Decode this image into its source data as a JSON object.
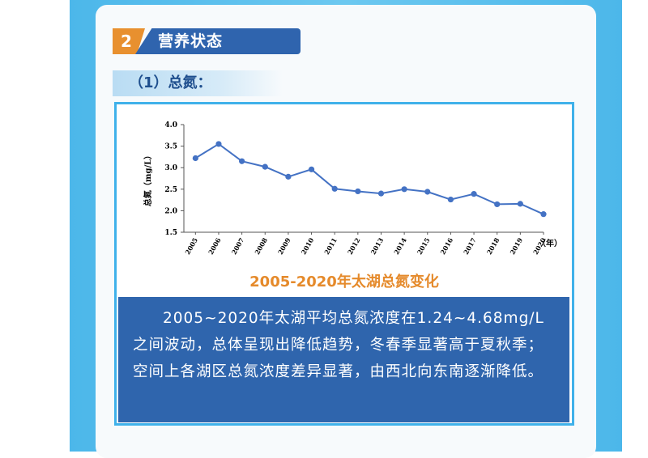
{
  "section": {
    "number": "2",
    "title": "营养状态"
  },
  "subsection": {
    "title": "（1）总氮："
  },
  "chart_data": {
    "type": "line",
    "title": "2005-2020年太湖总氮变化",
    "xlabel": "（年）",
    "ylabel": "总氮（mg/L）",
    "ylim": [
      1.5,
      4.0
    ],
    "yticks": [
      "1.5",
      "2.0",
      "2.5",
      "3.0",
      "3.5",
      "4.0"
    ],
    "x": [
      "2005",
      "2006",
      "2007",
      "2008",
      "2009",
      "2010",
      "2011",
      "2012",
      "2013",
      "2014",
      "2015",
      "2016",
      "2017",
      "2018",
      "2019",
      "2020"
    ],
    "values": [
      3.22,
      3.55,
      3.15,
      3.02,
      2.79,
      2.96,
      2.51,
      2.45,
      2.4,
      2.5,
      2.44,
      2.26,
      2.39,
      2.15,
      2.16,
      1.92
    ],
    "grid": false,
    "marker_color": "#4472c4"
  },
  "description": "2005~2020年太湖平均总氮浓度在1.24~4.68mg/L之间波动，总体呈现出降低趋势，冬春季显著高于夏秋季；空间上各湖区总氮浓度差异显著，由西北向东南逐渐降低。"
}
